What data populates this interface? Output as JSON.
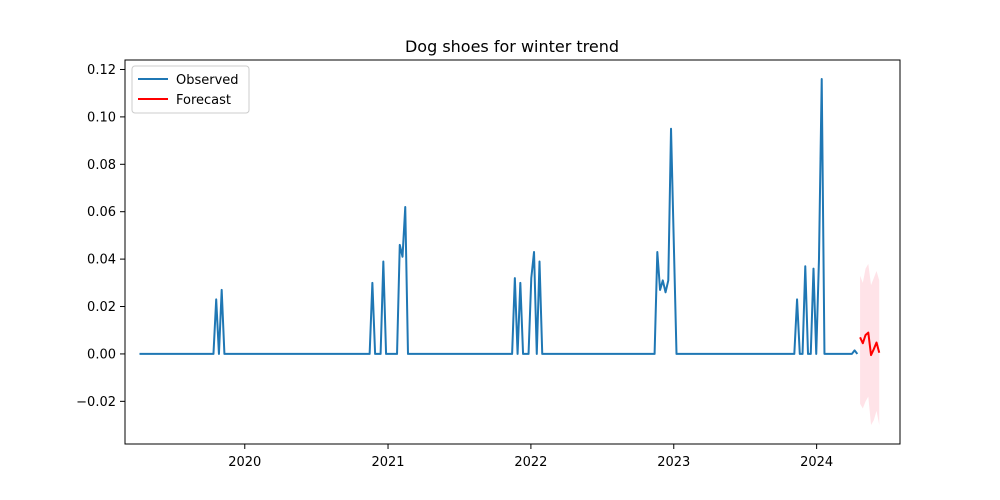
{
  "chart_data": {
    "type": "line",
    "title": "Dog shoes for winter trend",
    "xlabel": "",
    "ylabel": "",
    "xlim": [
      "2019-03-01",
      "2024-08-01"
    ],
    "ylim": [
      -0.038,
      0.124
    ],
    "x_ticks": [
      "2020",
      "2021",
      "2022",
      "2023",
      "2024"
    ],
    "y_ticks": [
      "−0.02",
      "0.00",
      "0.02",
      "0.04",
      "0.06",
      "0.08",
      "0.10",
      "0.12"
    ],
    "grid": false,
    "legend_position": "upper left",
    "series": [
      {
        "name": "Observed",
        "color": "#1f77b4",
        "points": [
          [
            "2019-04-07",
            0
          ],
          [
            "2019-10-13",
            0
          ],
          [
            "2019-10-20",
            0.023
          ],
          [
            "2019-10-27",
            0
          ],
          [
            "2019-11-03",
            0.027
          ],
          [
            "2019-11-10",
            0
          ],
          [
            "2020-11-15",
            0
          ],
          [
            "2020-11-22",
            0.03
          ],
          [
            "2020-11-29",
            0
          ],
          [
            "2020-12-13",
            0
          ],
          [
            "2020-12-20",
            0.039
          ],
          [
            "2020-12-27",
            0
          ],
          [
            "2021-01-24",
            0
          ],
          [
            "2021-01-31",
            0.046
          ],
          [
            "2021-02-07",
            0.041
          ],
          [
            "2021-02-14",
            0.062
          ],
          [
            "2021-02-21",
            0
          ],
          [
            "2021-11-14",
            0
          ],
          [
            "2021-11-21",
            0.032
          ],
          [
            "2021-11-28",
            0
          ],
          [
            "2021-12-05",
            0.03
          ],
          [
            "2021-12-12",
            0
          ],
          [
            "2021-12-26",
            0
          ],
          [
            "2022-01-02",
            0.032
          ],
          [
            "2022-01-09",
            0.043
          ],
          [
            "2022-01-16",
            0
          ],
          [
            "2022-01-23",
            0.039
          ],
          [
            "2022-01-30",
            0
          ],
          [
            "2022-11-13",
            0
          ],
          [
            "2022-11-20",
            0.043
          ],
          [
            "2022-11-27",
            0.027
          ],
          [
            "2022-12-04",
            0.031
          ],
          [
            "2022-12-11",
            0.026
          ],
          [
            "2022-12-18",
            0.031
          ],
          [
            "2022-12-25",
            0.095
          ],
          [
            "2023-01-08",
            0
          ],
          [
            "2023-11-05",
            0
          ],
          [
            "2023-11-12",
            0.023
          ],
          [
            "2023-11-19",
            0
          ],
          [
            "2023-11-26",
            0
          ],
          [
            "2023-12-03",
            0.037
          ],
          [
            "2023-12-10",
            0
          ],
          [
            "2023-12-17",
            0
          ],
          [
            "2023-12-24",
            0.036
          ],
          [
            "2023-12-31",
            0
          ],
          [
            "2024-01-07",
            0.04
          ],
          [
            "2024-01-14",
            0.116
          ],
          [
            "2024-01-21",
            0
          ],
          [
            "2024-03-24",
            0
          ],
          [
            "2024-03-31",
            0
          ],
          [
            "2024-04-07",
            0.0015
          ],
          [
            "2024-04-14",
            0
          ]
        ]
      },
      {
        "name": "Forecast",
        "color": "#ff0000",
        "points": [
          [
            "2024-04-21",
            0.007
          ],
          [
            "2024-04-28",
            0.0045
          ],
          [
            "2024-05-05",
            0.008
          ],
          [
            "2024-05-12",
            0.009
          ],
          [
            "2024-05-19",
            -0.0005
          ],
          [
            "2024-05-26",
            0.002
          ],
          [
            "2024-06-02",
            0.0048
          ],
          [
            "2024-06-09",
            0.0005
          ]
        ]
      }
    ],
    "confidence_band": {
      "color": "#ffc0cb",
      "points": [
        [
          "2024-04-21",
          -0.021,
          0.033
        ],
        [
          "2024-04-28",
          -0.023,
          0.03
        ],
        [
          "2024-05-05",
          -0.02,
          0.036
        ],
        [
          "2024-05-12",
          -0.018,
          0.038
        ],
        [
          "2024-05-19",
          -0.03,
          0.029
        ],
        [
          "2024-05-26",
          -0.028,
          0.032
        ],
        [
          "2024-06-02",
          -0.024,
          0.035
        ],
        [
          "2024-06-09",
          -0.03,
          0.031
        ]
      ]
    }
  }
}
